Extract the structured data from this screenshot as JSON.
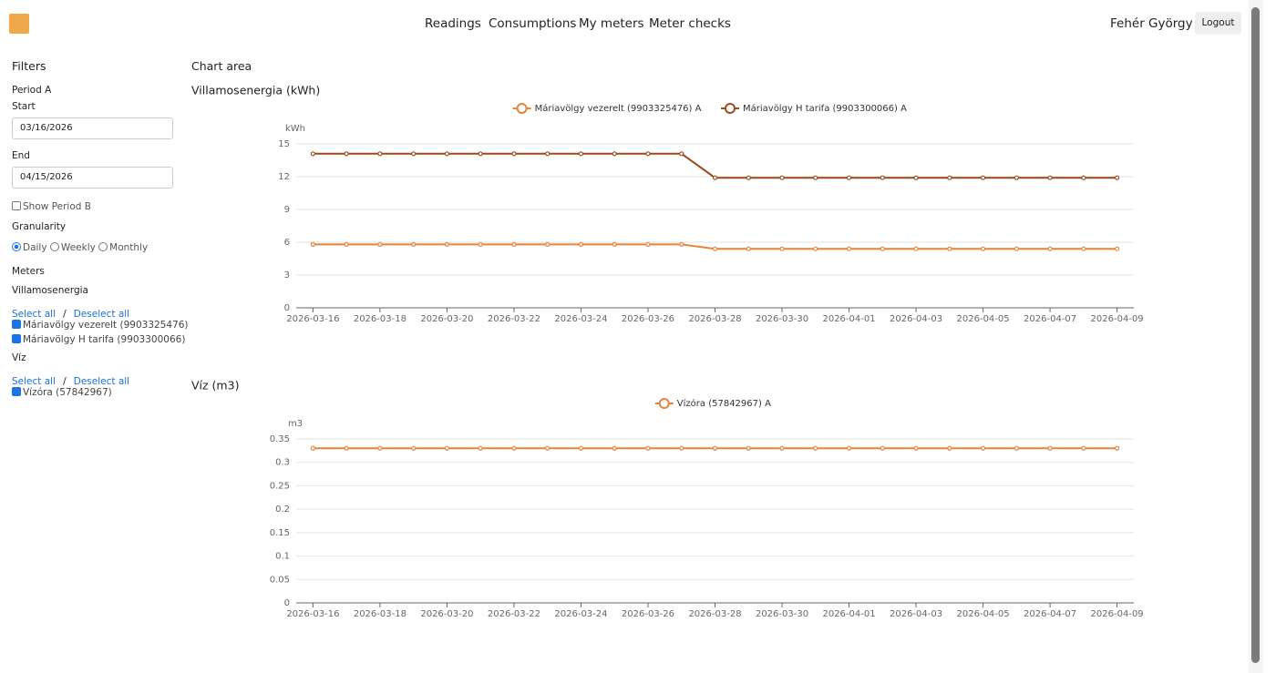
{
  "nav": {
    "links": [
      "Readings",
      "Consumptions",
      "My meters",
      "Meter checks"
    ],
    "user": "Fehér György",
    "logout": "Logout"
  },
  "filters": {
    "title": "Filters",
    "period_a": "Period A",
    "start_label": "Start",
    "start_value": "03/16/2026",
    "end_label": "End",
    "end_value": "04/15/2026",
    "show_period_b": "Show Period B",
    "granularity": "Granularity",
    "granularity_options": [
      "Daily",
      "Weekly",
      "Monthly"
    ],
    "meters": "Meters",
    "groups": [
      {
        "name": "Villamosenergia",
        "select_all": "Select all",
        "separator": "/",
        "deselect_all": "Deselect all",
        "meters": [
          "Máriavölgy vezerelt (9903325476)",
          "Máriavölgy H tarifa (9903300066)"
        ]
      },
      {
        "name": "Víz",
        "select_all": "Select all",
        "separator": "/",
        "deselect_all": "Deselect all",
        "meters": [
          "Vízóra (57842967)"
        ]
      }
    ]
  },
  "chart_area": "Chart area",
  "chart_data": [
    {
      "type": "line",
      "title": "Villamosenergia (kWh)",
      "y_label": "kWh",
      "categories": [
        "2026-03-16",
        null,
        "2026-03-18",
        null,
        "2026-03-20",
        null,
        "2026-03-22",
        null,
        "2026-03-24",
        null,
        "2026-03-26",
        null,
        "2026-03-28",
        null,
        "2026-03-30",
        null,
        "2026-04-01",
        null,
        "2026-04-03",
        null,
        "2026-04-05",
        null,
        "2026-04-07",
        null,
        "2026-04-09"
      ],
      "series": [
        {
          "name": "Máriavölgy vezerelt (9903325476) A",
          "color": "#e8833a",
          "values": [
            5.8,
            5.8,
            5.8,
            5.8,
            5.8,
            5.8,
            5.8,
            5.8,
            5.8,
            5.8,
            5.8,
            5.8,
            5.4,
            5.4,
            5.4,
            5.4,
            5.4,
            5.4,
            5.4,
            5.4,
            5.4,
            5.4,
            5.4,
            5.4,
            5.4
          ]
        },
        {
          "name": "Máriavölgy H tarifa (9903300066) A",
          "color": "#9c4a1c",
          "values": [
            14.1,
            14.1,
            14.1,
            14.1,
            14.1,
            14.1,
            14.1,
            14.1,
            14.1,
            14.1,
            14.1,
            14.1,
            11.9,
            11.9,
            11.9,
            11.9,
            11.9,
            11.9,
            11.9,
            11.9,
            11.9,
            11.9,
            11.9,
            11.9,
            11.9
          ]
        }
      ],
      "ylim": [
        0,
        15
      ],
      "yticks": [
        0,
        3,
        6,
        9,
        12,
        15
      ],
      "grid": true
    },
    {
      "type": "line",
      "title": "Víz (m3)",
      "y_label": "m3",
      "categories": [
        "2026-03-16",
        null,
        "2026-03-18",
        null,
        "2026-03-20",
        null,
        "2026-03-22",
        null,
        "2026-03-24",
        null,
        "2026-03-26",
        null,
        "2026-03-28",
        null,
        "2026-03-30",
        null,
        "2026-04-01",
        null,
        "2026-04-03",
        null,
        "2026-04-05",
        null,
        "2026-04-07",
        null,
        "2026-04-09"
      ],
      "series": [
        {
          "name": "Vízóra (57842967) A",
          "color": "#e8833a",
          "values": [
            0.33,
            0.33,
            0.33,
            0.33,
            0.33,
            0.33,
            0.33,
            0.33,
            0.33,
            0.33,
            0.33,
            0.33,
            0.33,
            0.33,
            0.33,
            0.33,
            0.33,
            0.33,
            0.33,
            0.33,
            0.33,
            0.33,
            0.33,
            0.33,
            0.33
          ]
        }
      ],
      "ylim": [
        0,
        0.35
      ],
      "yticks": [
        0,
        0.05,
        0.1,
        0.15,
        0.2,
        0.25,
        0.3,
        0.35
      ],
      "grid": true
    }
  ]
}
